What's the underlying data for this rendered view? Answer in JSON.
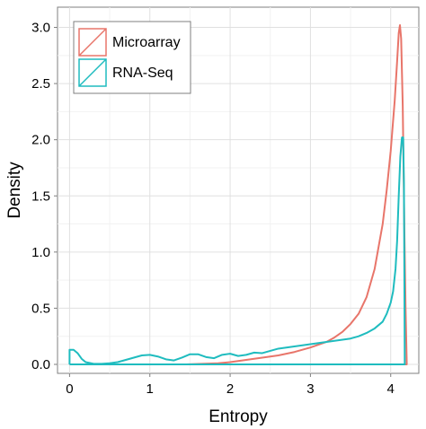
{
  "chart_data": {
    "type": "line",
    "title": "",
    "xlabel": "Entropy",
    "ylabel": "Density",
    "xlim": [
      -0.15,
      4.35
    ],
    "ylim": [
      -0.08,
      3.18
    ],
    "x_ticks": [
      0,
      1,
      2,
      3,
      4
    ],
    "x_tick_labels": [
      "0",
      "1",
      "2",
      "3",
      "4"
    ],
    "y_ticks": [
      0.0,
      0.5,
      1.0,
      1.5,
      2.0,
      2.5,
      3.0
    ],
    "y_tick_labels": [
      "0.0",
      "0.5",
      "1.0",
      "1.5",
      "2.0",
      "2.5",
      "3.0"
    ],
    "grid": true,
    "legend_position": "top-left",
    "series": [
      {
        "name": "Microarray",
        "color": "#e8756a",
        "points": [
          [
            1.45,
            0.0
          ],
          [
            1.65,
            0.005
          ],
          [
            1.85,
            0.01
          ],
          [
            2.0,
            0.02
          ],
          [
            2.2,
            0.04
          ],
          [
            2.4,
            0.06
          ],
          [
            2.6,
            0.08
          ],
          [
            2.8,
            0.11
          ],
          [
            3.0,
            0.15
          ],
          [
            3.2,
            0.2
          ],
          [
            3.3,
            0.24
          ],
          [
            3.4,
            0.29
          ],
          [
            3.5,
            0.36
          ],
          [
            3.6,
            0.45
          ],
          [
            3.7,
            0.6
          ],
          [
            3.8,
            0.85
          ],
          [
            3.9,
            1.25
          ],
          [
            3.95,
            1.55
          ],
          [
            4.0,
            1.9
          ],
          [
            4.05,
            2.35
          ],
          [
            4.08,
            2.7
          ],
          [
            4.1,
            2.95
          ],
          [
            4.115,
            3.02
          ],
          [
            4.13,
            2.9
          ],
          [
            4.15,
            2.3
          ],
          [
            4.17,
            1.2
          ],
          [
            4.185,
            0.5
          ],
          [
            4.2,
            0.0
          ],
          [
            1.45,
            0.0
          ]
        ]
      },
      {
        "name": "RNA-Seq",
        "color": "#1fbcbf",
        "points": [
          [
            0.0,
            0.0
          ],
          [
            0.0,
            0.13
          ],
          [
            0.05,
            0.13
          ],
          [
            0.1,
            0.1
          ],
          [
            0.15,
            0.05
          ],
          [
            0.2,
            0.02
          ],
          [
            0.3,
            0.005
          ],
          [
            0.4,
            0.005
          ],
          [
            0.5,
            0.01
          ],
          [
            0.6,
            0.02
          ],
          [
            0.7,
            0.04
          ],
          [
            0.8,
            0.06
          ],
          [
            0.9,
            0.08
          ],
          [
            1.0,
            0.085
          ],
          [
            1.1,
            0.07
          ],
          [
            1.2,
            0.045
          ],
          [
            1.3,
            0.035
          ],
          [
            1.4,
            0.06
          ],
          [
            1.5,
            0.09
          ],
          [
            1.6,
            0.09
          ],
          [
            1.7,
            0.065
          ],
          [
            1.8,
            0.055
          ],
          [
            1.9,
            0.085
          ],
          [
            2.0,
            0.095
          ],
          [
            2.1,
            0.075
          ],
          [
            2.2,
            0.085
          ],
          [
            2.3,
            0.105
          ],
          [
            2.4,
            0.1
          ],
          [
            2.5,
            0.12
          ],
          [
            2.6,
            0.14
          ],
          [
            2.7,
            0.15
          ],
          [
            2.8,
            0.16
          ],
          [
            2.9,
            0.17
          ],
          [
            3.0,
            0.18
          ],
          [
            3.1,
            0.19
          ],
          [
            3.2,
            0.2
          ],
          [
            3.3,
            0.21
          ],
          [
            3.4,
            0.22
          ],
          [
            3.5,
            0.23
          ],
          [
            3.6,
            0.25
          ],
          [
            3.7,
            0.28
          ],
          [
            3.8,
            0.32
          ],
          [
            3.9,
            0.38
          ],
          [
            3.95,
            0.45
          ],
          [
            4.0,
            0.55
          ],
          [
            4.03,
            0.65
          ],
          [
            4.06,
            0.85
          ],
          [
            4.08,
            1.1
          ],
          [
            4.1,
            1.5
          ],
          [
            4.12,
            1.85
          ],
          [
            4.14,
            2.02
          ],
          [
            4.155,
            2.02
          ],
          [
            4.165,
            1.6
          ],
          [
            4.17,
            0.8
          ],
          [
            4.175,
            0.0
          ],
          [
            0.0,
            0.0
          ]
        ]
      }
    ]
  }
}
